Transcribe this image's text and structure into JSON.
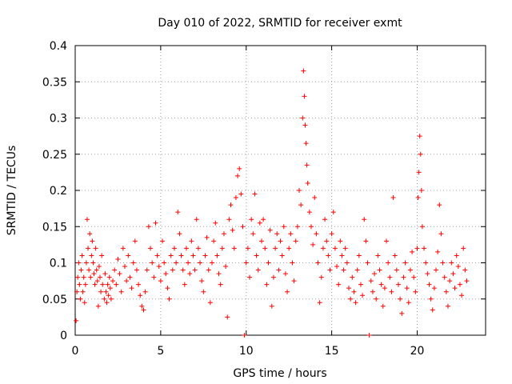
{
  "chart_data": {
    "type": "scatter",
    "title": "Day 010 of 2022, SRMTID for receiver exmt",
    "xlabel": "GPS time / hours",
    "ylabel": "SRMTID / TECUs",
    "xlim": [
      0,
      24.0
    ],
    "ylim": [
      0,
      0.4
    ],
    "x_ticks": [
      0,
      5,
      10,
      15,
      20
    ],
    "x_tick_labels": [
      "0",
      "5",
      "10",
      "15",
      "20"
    ],
    "y_ticks": [
      0,
      0.05,
      0.1,
      0.15,
      0.2,
      0.25,
      0.3,
      0.35,
      0.4
    ],
    "y_tick_labels": [
      "0",
      "0.05",
      "0.1",
      "0.15",
      "0.2",
      "0.25",
      "0.3",
      "0.35",
      "0.4"
    ],
    "grid": true,
    "marker": "plus",
    "color": "#ff0000",
    "series": [
      {
        "name": "SRMTID",
        "points": [
          [
            0.05,
            0.02
          ],
          [
            0.1,
            0.06
          ],
          [
            0.15,
            0.08
          ],
          [
            0.2,
            0.1
          ],
          [
            0.25,
            0.07
          ],
          [
            0.3,
            0.05
          ],
          [
            0.35,
            0.09
          ],
          [
            0.4,
            0.11
          ],
          [
            0.45,
            0.06
          ],
          [
            0.5,
            0.08
          ],
          [
            0.55,
            0.045
          ],
          [
            0.6,
            0.07
          ],
          [
            0.65,
            0.1
          ],
          [
            0.7,
            0.16
          ],
          [
            0.75,
            0.12
          ],
          [
            0.8,
            0.09
          ],
          [
            0.85,
            0.14
          ],
          [
            0.9,
            0.08
          ],
          [
            0.95,
            0.11
          ],
          [
            1.0,
            0.13
          ],
          [
            1.05,
            0.1
          ],
          [
            1.1,
            0.085
          ],
          [
            1.15,
            0.07
          ],
          [
            1.2,
            0.12
          ],
          [
            1.25,
            0.09
          ],
          [
            1.3,
            0.075
          ],
          [
            1.35,
            0.04
          ],
          [
            1.4,
            0.095
          ],
          [
            1.45,
            0.08
          ],
          [
            1.5,
            0.06
          ],
          [
            1.55,
            0.11
          ],
          [
            1.6,
            0.07
          ],
          [
            1.7,
            0.05
          ],
          [
            1.75,
            0.085
          ],
          [
            1.8,
            0.06
          ],
          [
            1.85,
            0.045
          ],
          [
            1.9,
            0.07
          ],
          [
            1.95,
            0.055
          ],
          [
            2.0,
            0.08
          ],
          [
            2.05,
            0.065
          ],
          [
            2.1,
            0.05
          ],
          [
            2.2,
            0.075
          ],
          [
            2.3,
            0.09
          ],
          [
            2.4,
            0.07
          ],
          [
            2.5,
            0.105
          ],
          [
            2.6,
            0.085
          ],
          [
            2.7,
            0.06
          ],
          [
            2.8,
            0.12
          ],
          [
            2.9,
            0.095
          ],
          [
            3.0,
            0.075
          ],
          [
            3.1,
            0.11
          ],
          [
            3.2,
            0.08
          ],
          [
            3.3,
            0.065
          ],
          [
            3.4,
            0.1
          ],
          [
            3.5,
            0.13
          ],
          [
            3.6,
            0.09
          ],
          [
            3.7,
            0.07
          ],
          [
            3.8,
            0.055
          ],
          [
            3.9,
            0.04
          ],
          [
            4.0,
            0.035
          ],
          [
            4.1,
            0.06
          ],
          [
            4.2,
            0.09
          ],
          [
            4.3,
            0.15
          ],
          [
            4.4,
            0.12
          ],
          [
            4.5,
            0.1
          ],
          [
            4.6,
            0.08
          ],
          [
            4.7,
            0.155
          ],
          [
            4.8,
            0.11
          ],
          [
            4.9,
            0.095
          ],
          [
            5.0,
            0.075
          ],
          [
            5.1,
            0.13
          ],
          [
            5.2,
            0.1
          ],
          [
            5.3,
            0.085
          ],
          [
            5.4,
            0.065
          ],
          [
            5.5,
            0.05
          ],
          [
            5.6,
            0.11
          ],
          [
            5.7,
            0.09
          ],
          [
            5.8,
            0.12
          ],
          [
            5.9,
            0.1
          ],
          [
            6.0,
            0.17
          ],
          [
            6.1,
            0.14
          ],
          [
            6.2,
            0.11
          ],
          [
            6.3,
            0.09
          ],
          [
            6.4,
            0.07
          ],
          [
            6.5,
            0.12
          ],
          [
            6.6,
            0.1
          ],
          [
            6.7,
            0.085
          ],
          [
            6.8,
            0.13
          ],
          [
            6.9,
            0.11
          ],
          [
            7.0,
            0.09
          ],
          [
            7.1,
            0.16
          ],
          [
            7.2,
            0.12
          ],
          [
            7.3,
            0.1
          ],
          [
            7.4,
            0.075
          ],
          [
            7.5,
            0.06
          ],
          [
            7.6,
            0.11
          ],
          [
            7.7,
            0.135
          ],
          [
            7.8,
            0.09
          ],
          [
            7.9,
            0.045
          ],
          [
            8.0,
            0.1
          ],
          [
            8.1,
            0.13
          ],
          [
            8.2,
            0.155
          ],
          [
            8.3,
            0.11
          ],
          [
            8.4,
            0.085
          ],
          [
            8.5,
            0.07
          ],
          [
            8.6,
            0.12
          ],
          [
            8.7,
            0.14
          ],
          [
            8.8,
            0.095
          ],
          [
            8.9,
            0.025
          ],
          [
            9.0,
            0.16
          ],
          [
            9.1,
            0.18
          ],
          [
            9.2,
            0.145
          ],
          [
            9.3,
            0.12
          ],
          [
            9.4,
            0.19
          ],
          [
            9.5,
            0.22
          ],
          [
            9.6,
            0.23
          ],
          [
            9.7,
            0.195
          ],
          [
            9.8,
            0.15
          ],
          [
            9.9,
            0.0
          ],
          [
            10.0,
            0.1
          ],
          [
            10.1,
            0.12
          ],
          [
            10.2,
            0.08
          ],
          [
            10.3,
            0.16
          ],
          [
            10.4,
            0.14
          ],
          [
            10.5,
            0.195
          ],
          [
            10.6,
            0.11
          ],
          [
            10.7,
            0.09
          ],
          [
            10.8,
            0.155
          ],
          [
            10.9,
            0.13
          ],
          [
            11.0,
            0.16
          ],
          [
            11.1,
            0.12
          ],
          [
            11.2,
            0.07
          ],
          [
            11.3,
            0.1
          ],
          [
            11.4,
            0.145
          ],
          [
            11.5,
            0.04
          ],
          [
            11.6,
            0.08
          ],
          [
            11.7,
            0.12
          ],
          [
            11.8,
            0.14
          ],
          [
            11.9,
            0.09
          ],
          [
            12.0,
            0.13
          ],
          [
            12.1,
            0.11
          ],
          [
            12.2,
            0.15
          ],
          [
            12.3,
            0.085
          ],
          [
            12.4,
            0.06
          ],
          [
            12.5,
            0.12
          ],
          [
            12.6,
            0.14
          ],
          [
            12.7,
            0.1
          ],
          [
            12.8,
            0.075
          ],
          [
            12.9,
            0.13
          ],
          [
            13.0,
            0.15
          ],
          [
            13.1,
            0.2
          ],
          [
            13.2,
            0.18
          ],
          [
            13.3,
            0.3
          ],
          [
            13.35,
            0.365
          ],
          [
            13.4,
            0.33
          ],
          [
            13.45,
            0.29
          ],
          [
            13.5,
            0.265
          ],
          [
            13.55,
            0.235
          ],
          [
            13.6,
            0.21
          ],
          [
            13.7,
            0.17
          ],
          [
            13.8,
            0.15
          ],
          [
            13.9,
            0.125
          ],
          [
            14.0,
            0.19
          ],
          [
            14.1,
            0.14
          ],
          [
            14.2,
            0.1
          ],
          [
            14.3,
            0.045
          ],
          [
            14.4,
            0.08
          ],
          [
            14.5,
            0.12
          ],
          [
            14.6,
            0.16
          ],
          [
            14.7,
            0.13
          ],
          [
            14.8,
            0.11
          ],
          [
            14.9,
            0.09
          ],
          [
            15.0,
            0.14
          ],
          [
            15.1,
            0.17
          ],
          [
            15.2,
            0.12
          ],
          [
            15.3,
            0.095
          ],
          [
            15.4,
            0.07
          ],
          [
            15.5,
            0.13
          ],
          [
            15.6,
            0.11
          ],
          [
            15.7,
            0.09
          ],
          [
            15.8,
            0.12
          ],
          [
            15.9,
            0.1
          ],
          [
            16.0,
            0.065
          ],
          [
            16.1,
            0.05
          ],
          [
            16.2,
            0.08
          ],
          [
            16.3,
            0.06
          ],
          [
            16.4,
            0.045
          ],
          [
            16.5,
            0.09
          ],
          [
            16.6,
            0.11
          ],
          [
            16.7,
            0.07
          ],
          [
            16.8,
            0.055
          ],
          [
            16.9,
            0.16
          ],
          [
            17.0,
            0.13
          ],
          [
            17.1,
            0.1
          ],
          [
            17.2,
            0.0
          ],
          [
            17.3,
            0.075
          ],
          [
            17.4,
            0.06
          ],
          [
            17.5,
            0.085
          ],
          [
            17.6,
            0.05
          ],
          [
            17.7,
            0.11
          ],
          [
            17.8,
            0.09
          ],
          [
            17.9,
            0.07
          ],
          [
            18.0,
            0.04
          ],
          [
            18.1,
            0.065
          ],
          [
            18.2,
            0.13
          ],
          [
            18.3,
            0.1
          ],
          [
            18.4,
            0.08
          ],
          [
            18.5,
            0.06
          ],
          [
            18.6,
            0.19
          ],
          [
            18.7,
            0.11
          ],
          [
            18.8,
            0.09
          ],
          [
            18.9,
            0.07
          ],
          [
            19.0,
            0.05
          ],
          [
            19.1,
            0.03
          ],
          [
            19.2,
            0.08
          ],
          [
            19.3,
            0.1
          ],
          [
            19.4,
            0.065
          ],
          [
            19.5,
            0.045
          ],
          [
            19.6,
            0.09
          ],
          [
            19.7,
            0.115
          ],
          [
            19.8,
            0.08
          ],
          [
            19.9,
            0.06
          ],
          [
            20.0,
            0.12
          ],
          [
            20.05,
            0.19
          ],
          [
            20.1,
            0.225
          ],
          [
            20.15,
            0.275
          ],
          [
            20.2,
            0.25
          ],
          [
            20.25,
            0.2
          ],
          [
            20.3,
            0.15
          ],
          [
            20.4,
            0.12
          ],
          [
            20.5,
            0.1
          ],
          [
            20.6,
            0.085
          ],
          [
            20.7,
            0.07
          ],
          [
            20.8,
            0.05
          ],
          [
            20.9,
            0.035
          ],
          [
            21.0,
            0.065
          ],
          [
            21.1,
            0.09
          ],
          [
            21.2,
            0.115
          ],
          [
            21.3,
            0.18
          ],
          [
            21.4,
            0.14
          ],
          [
            21.5,
            0.1
          ],
          [
            21.6,
            0.08
          ],
          [
            21.7,
            0.06
          ],
          [
            21.8,
            0.04
          ],
          [
            21.9,
            0.075
          ],
          [
            22.0,
            0.1
          ],
          [
            22.1,
            0.085
          ],
          [
            22.2,
            0.065
          ],
          [
            22.3,
            0.11
          ],
          [
            22.4,
            0.095
          ],
          [
            22.5,
            0.07
          ],
          [
            22.6,
            0.055
          ],
          [
            22.7,
            0.12
          ],
          [
            22.8,
            0.09
          ],
          [
            22.9,
            0.075
          ]
        ]
      }
    ]
  }
}
